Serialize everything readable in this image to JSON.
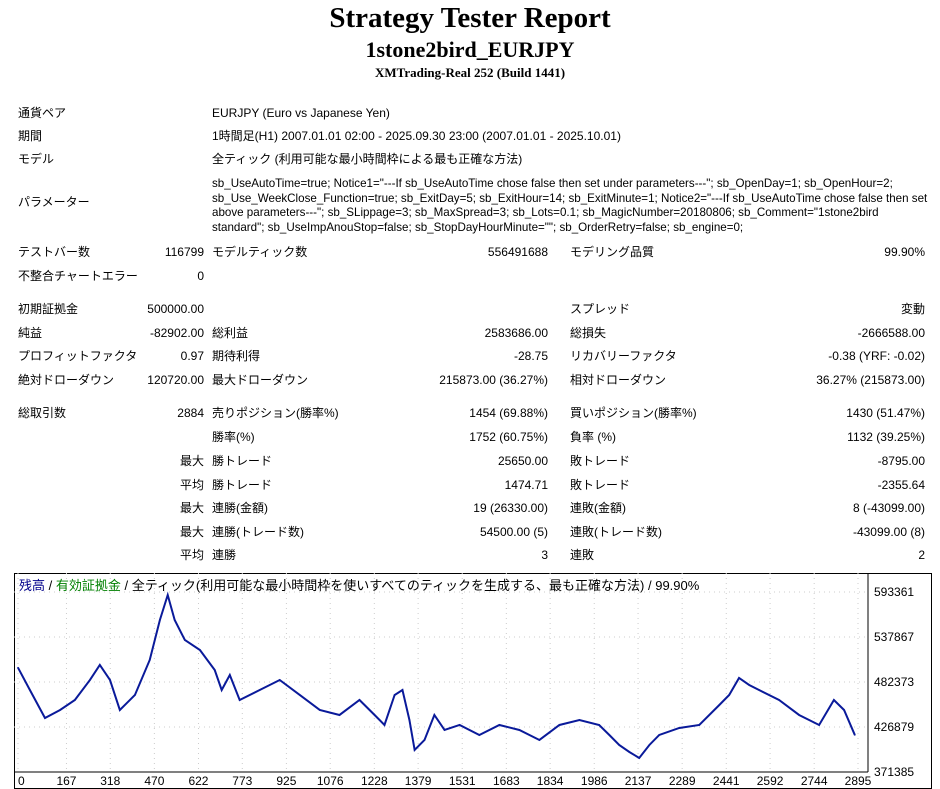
{
  "header": {
    "title": "Strategy Tester Report",
    "subtitle": "1stone2bird_EURJPY",
    "build": "XMTrading-Real 252 (Build 1441)"
  },
  "info": {
    "symbol_label": "通貨ペア",
    "symbol": "EURJPY (Euro vs Japanese Yen)",
    "period_label": "期間",
    "period": "1時間足(H1) 2007.01.01 02:00 - 2025.09.30 23:00 (2007.01.01 - 2025.10.01)",
    "model_label": "モデル",
    "model": "全ティック (利用可能な最小時間枠による最も正確な方法)",
    "params_label": "パラメーター",
    "params": "sb_UseAutoTime=true; Notice1=\"---If sb_UseAutoTime chose false then set under parameters---\"; sb_OpenDay=1; sb_OpenHour=2; sb_Use_WeekClose_Function=true; sb_ExitDay=5; sb_ExitHour=14; sb_ExitMinute=1; Notice2=\"---If sb_UseAutoTime chose false then set above parameters---\"; sb_SLippage=3; sb_MaxSpread=3; sb_Lots=0.1; sb_MagicNumber=20180806; sb_Comment=\"1stone2bird standard\"; sb_UseImpAnouStop=false; sb_StopDayHourMinute=\"\"; sb_OrderRetry=false; sb_engine=0;"
  },
  "stats": {
    "bars_label": "テストバー数",
    "bars": "116799",
    "ticks_label": "モデルティック数",
    "ticks": "556491688",
    "quality_label": "モデリング品質",
    "quality": "99.90%",
    "mismatch_label": "不整合チャートエラー",
    "mismatch": "0",
    "deposit_label": "初期証拠金",
    "deposit": "500000.00",
    "spread_label": "スプレッド",
    "spread": "変動",
    "net_label": "純益",
    "net": "-82902.00",
    "gross_profit_label": "総利益",
    "gross_profit": "2583686.00",
    "gross_loss_label": "総損失",
    "gross_loss": "-2666588.00",
    "pf_label": "プロフィットファクタ",
    "pf": "0.97",
    "payoff_label": "期待利得",
    "payoff": "-28.75",
    "rf_label": "リカバリーファクタ",
    "rf": "-0.38 (YRF: -0.02)",
    "abs_dd_label": "絶対ドローダウン",
    "abs_dd": "120720.00",
    "max_dd_label": "最大ドローダウン",
    "max_dd": "215873.00 (36.27%)",
    "rel_dd_label": "相対ドローダウン",
    "rel_dd": "36.27% (215873.00)",
    "trades_label": "総取引数",
    "trades": "2884",
    "short_label": "売りポジション(勝率%)",
    "short": "1454 (69.88%)",
    "long_label": "買いポジション(勝率%)",
    "long": "1430 (51.47%)",
    "win_rate_label": "勝率(%)",
    "win_rate": "1752 (60.75%)",
    "loss_rate_label": "負率 (%)",
    "loss_rate": "1132 (39.25%)",
    "max1": "最大",
    "largest_win_label": "勝トレード",
    "largest_win": "25650.00",
    "largest_loss_label": "敗トレード",
    "largest_loss": "-8795.00",
    "avg1": "平均",
    "avg_win_label": "勝トレード",
    "avg_win": "1474.71",
    "avg_loss_label": "敗トレード",
    "avg_loss": "-2355.64",
    "max2": "最大",
    "cons_wins_money_label": "連勝(金額)",
    "cons_wins_money": "19 (26330.00)",
    "cons_losses_money_label": "連敗(金額)",
    "cons_losses_money": "8 (-43099.00)",
    "max3": "最大",
    "cons_profit_label": "連勝(トレード数)",
    "cons_profit": "54500.00 (5)",
    "cons_loss_label": "連敗(トレード数)",
    "cons_loss": "-43099.00 (8)",
    "avg2": "平均",
    "avg_cons_wins_label": "連勝",
    "avg_cons_wins": "3",
    "avg_cons_losses_label": "連敗",
    "avg_cons_losses": "2"
  },
  "chart_data": {
    "type": "line",
    "legend": {
      "balance": "残高",
      "sep1": " / ",
      "equity": "有効証拠金",
      "rest": " / 全ティック(利用可能な最小時間枠を使いすべてのティックを生成する、最も正確な方法) / 99.90%"
    },
    "colors": {
      "balance": "#00008b",
      "equity": "#008000",
      "line": "#0a1a9a"
    },
    "x_ticks": [
      "0",
      "167",
      "318",
      "470",
      "622",
      "773",
      "925",
      "1076",
      "1228",
      "1379",
      "1531",
      "1683",
      "1834",
      "1986",
      "2137",
      "2289",
      "2441",
      "2592",
      "2744",
      "2895"
    ],
    "y_ticks": [
      "593361",
      "537867",
      "482373",
      "426879",
      "371385"
    ],
    "xlim": [
      0,
      2895
    ],
    "ylim": [
      371385,
      593361
    ],
    "series": [
      {
        "name": "残高",
        "x": [
          0,
          41,
          93,
          145,
          196,
          248,
          282,
          317,
          351,
          403,
          454,
          489,
          516,
          540,
          575,
          627,
          678,
          702,
          730,
          764,
          833,
          902,
          971,
          1040,
          1108,
          1177,
          1229,
          1263,
          1298,
          1325,
          1349,
          1367,
          1401,
          1435,
          1470,
          1522,
          1590,
          1659,
          1728,
          1797,
          1866,
          1935,
          2003,
          2038,
          2072,
          2107,
          2141,
          2176,
          2210,
          2279,
          2348,
          2417,
          2451,
          2485,
          2520,
          2554,
          2623,
          2692,
          2761,
          2812,
          2847,
          2884
        ],
        "y": [
          500000,
          472527,
          438003,
          447867,
          460197,
          484857,
          503352,
          484857,
          447867,
          466361,
          509517,
          558837,
          589662,
          558837,
          534177,
          521847,
          497187,
          472527,
          491022,
          460197,
          472527,
          484857,
          466361,
          447867,
          441702,
          460197,
          441702,
          429372,
          466361,
          472527,
          435537,
          398547,
          410877,
          441702,
          423207,
          429372,
          417042,
          429372,
          423207,
          410877,
          429372,
          435537,
          429372,
          417042,
          404712,
          396081,
          388683,
          404712,
          417042,
          425673,
          429372,
          454032,
          466361,
          487323,
          478692,
          472527,
          460197,
          441702,
          429372,
          460197,
          447867,
          417098
        ]
      }
    ]
  }
}
